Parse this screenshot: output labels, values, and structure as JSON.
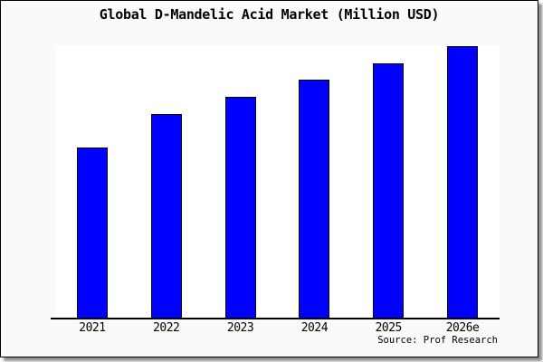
{
  "chart_data": {
    "type": "bar",
    "title": "Global D-Mandelic Acid Market (Million USD)",
    "categories": [
      "2021",
      "2022",
      "2023",
      "2024",
      "2025",
      "2026e"
    ],
    "values": [
      189,
      226,
      245,
      264,
      282,
      301
    ],
    "values_note": "no y-axis ticks, gridlines or data labels are shown; values are relative bar heights estimated from pixels",
    "ylim": [
      0,
      302
    ],
    "xlabel": "",
    "ylabel": "",
    "grid": false,
    "legend_position": "none",
    "bar_color": "#0000FF",
    "bar_outline_color": "#000000"
  },
  "source_note": "Source: Prof Research",
  "colors": {
    "canvas_background": "#FAFAFA",
    "plot_background": "#FFFFFF",
    "bar": "#0000FF",
    "axis": "#000000",
    "text": "#000000",
    "frame_border": "#000000",
    "drop_shadow": "#8F8F8F"
  }
}
